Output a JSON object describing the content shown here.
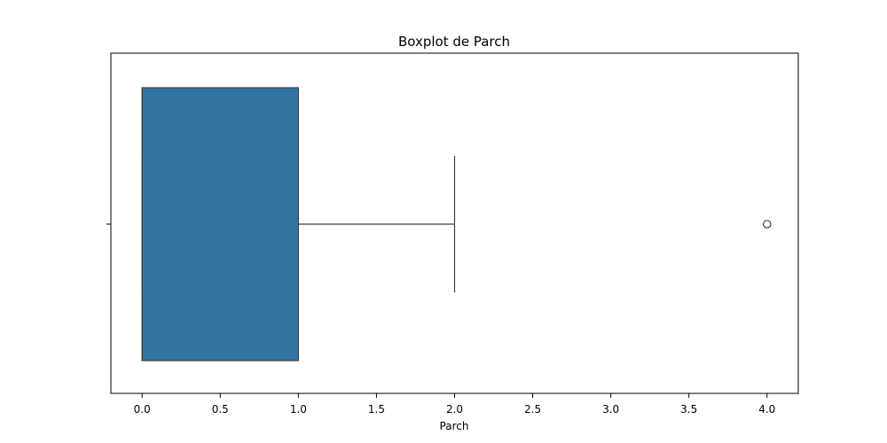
{
  "chart_data": {
    "type": "boxplot",
    "title": "Boxplot de Parch",
    "xlabel": "Parch",
    "ylabel": "",
    "xlim": [
      -0.2,
      4.2
    ],
    "x_ticks": [
      0.0,
      0.5,
      1.0,
      1.5,
      2.0,
      2.5,
      3.0,
      3.5,
      4.0
    ],
    "x_tick_labels": [
      "0.0",
      "0.5",
      "1.0",
      "1.5",
      "2.0",
      "2.5",
      "3.0",
      "3.5",
      "4.0"
    ],
    "orientation": "horizontal",
    "grid": false,
    "box": {
      "min": 0.0,
      "q1": 0.0,
      "median": 0.0,
      "q3": 1.0,
      "whisker_low": 0.0,
      "whisker_high": 2.0
    },
    "outliers": [
      4.0
    ],
    "colors": {
      "box_fill": "#3274a1",
      "lines": "#3f3f3f",
      "axes": "#000000"
    }
  }
}
